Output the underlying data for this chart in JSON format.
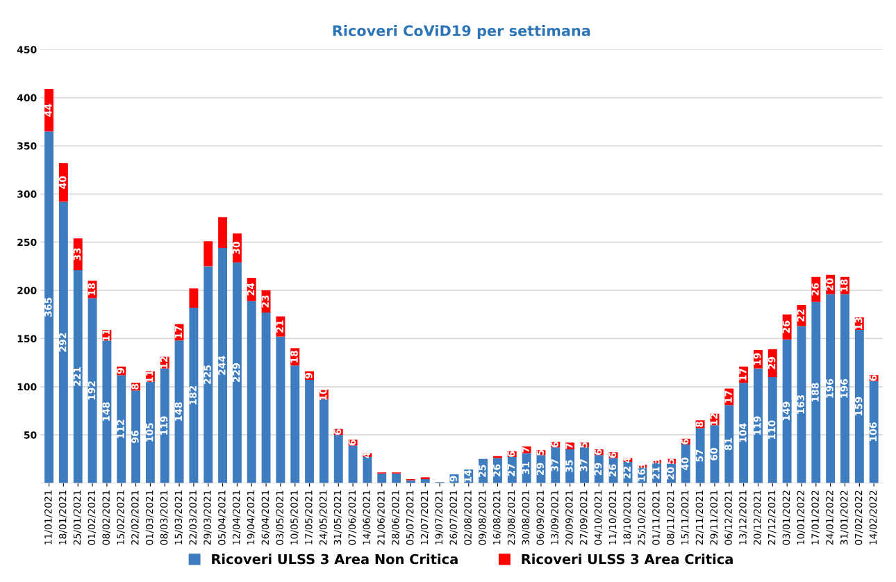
{
  "chart_data": {
    "type": "bar",
    "title": "Ricoveri CoViD19 per settimana",
    "stacked": true,
    "categories": [
      "11/01/2021",
      "18/01/2021",
      "25/01/2021",
      "01/02/2021",
      "08/02/2021",
      "15/02/2021",
      "22/02/2021",
      "01/03/2021",
      "08/03/2021",
      "15/03/2021",
      "22/03/2021",
      "29/03/2021",
      "05/04/2021",
      "12/04/2021",
      "19/04/2021",
      "26/04/2021",
      "03/05/2021",
      "10/05/2021",
      "17/05/2021",
      "24/05/2021",
      "31/05/2021",
      "07/06/2021",
      "14/06/2021",
      "21/06/2021",
      "28/06/2021",
      "05/07/2021",
      "12/07/2021",
      "19/07/2021",
      "26/07/2021",
      "02/08/2021",
      "09/08/2021",
      "16/08/2021",
      "23/08/2021",
      "30/08/2021",
      "06/09/2021",
      "13/09/2021",
      "20/09/2021",
      "27/09/2021",
      "04/10/2021",
      "11/10/2021",
      "18/10/2021",
      "25/10/2021",
      "01/11/2021",
      "08/11/2021",
      "15/11/2021",
      "22/11/2021",
      "29/11/2021",
      "06/12/2021",
      "13/12/2021",
      "20/12/2021",
      "27/12/2021",
      "03/01/2022",
      "10/01/2022",
      "17/01/2022",
      "24/01/2022",
      "31/01/2022",
      "07/02/2022",
      "14/02/2022"
    ],
    "series": [
      {
        "name": "Ricoveri ULSS 3 Area Non Critica",
        "color": "#3e7cc0",
        "values": [
          365,
          292,
          221,
          192,
          148,
          112,
          96,
          105,
          119,
          148,
          182,
          225,
          244,
          229,
          189,
          177,
          152,
          122,
          107,
          87,
          50,
          39,
          27,
          10,
          10,
          3,
          4,
          1,
          9,
          14,
          25,
          26,
          27,
          31,
          29,
          37,
          35,
          37,
          29,
          26,
          22,
          16,
          21,
          20,
          40,
          57,
          60,
          81,
          104,
          119,
          110,
          149,
          163,
          188,
          196,
          196,
          159,
          106
        ],
        "value_labels": [
          "365",
          "292",
          "221",
          "192",
          "148",
          "112",
          "96",
          "105",
          "119",
          "148",
          "182",
          "225",
          "244",
          "229",
          null,
          null,
          null,
          null,
          null,
          null,
          null,
          null,
          null,
          null,
          null,
          null,
          null,
          null,
          "9",
          "14",
          "25",
          "26",
          "27",
          "31",
          "29",
          "37",
          "35",
          "37",
          "29",
          "26",
          "22",
          "16",
          "21",
          "20",
          "40",
          "57",
          "60",
          "81",
          "104",
          "119",
          "110",
          "149",
          "163",
          "188",
          "196",
          "196",
          "159",
          "106"
        ]
      },
      {
        "name": "Ricoveri ULSS 3 Area Critica",
        "color": "#ff0000",
        "values": [
          44,
          40,
          33,
          18,
          11,
          9,
          8,
          11,
          12,
          17,
          20,
          26,
          32,
          30,
          24,
          23,
          21,
          18,
          9,
          10,
          6,
          6,
          4,
          1,
          1,
          1,
          2,
          0,
          0,
          0,
          0,
          2,
          6,
          7,
          5,
          6,
          7,
          5,
          6,
          6,
          4,
          3,
          3,
          5,
          6,
          8,
          12,
          17,
          17,
          19,
          29,
          26,
          22,
          26,
          20,
          18,
          13,
          6
        ],
        "value_labels": [
          "44",
          "40",
          "33",
          "18",
          "11",
          "9",
          "8",
          "11",
          "12",
          "17",
          null,
          null,
          null,
          "30",
          "24",
          "23",
          "21",
          "18",
          "9",
          "10",
          "6",
          "6",
          "4",
          null,
          null,
          null,
          null,
          null,
          null,
          null,
          null,
          null,
          "6",
          "7",
          "5",
          "6",
          "7",
          "5",
          "6",
          "6",
          "4",
          "3",
          "3",
          "5",
          "6",
          "8",
          "12",
          "17",
          "17",
          "19",
          "29",
          "26",
          "22",
          "26",
          "20",
          "18",
          "13",
          "6"
        ]
      }
    ],
    "ylim": [
      0,
      450
    ],
    "yticks": [
      50,
      100,
      150,
      200,
      250,
      300,
      350,
      400,
      450
    ],
    "grid": "y",
    "legend": "bottom"
  }
}
